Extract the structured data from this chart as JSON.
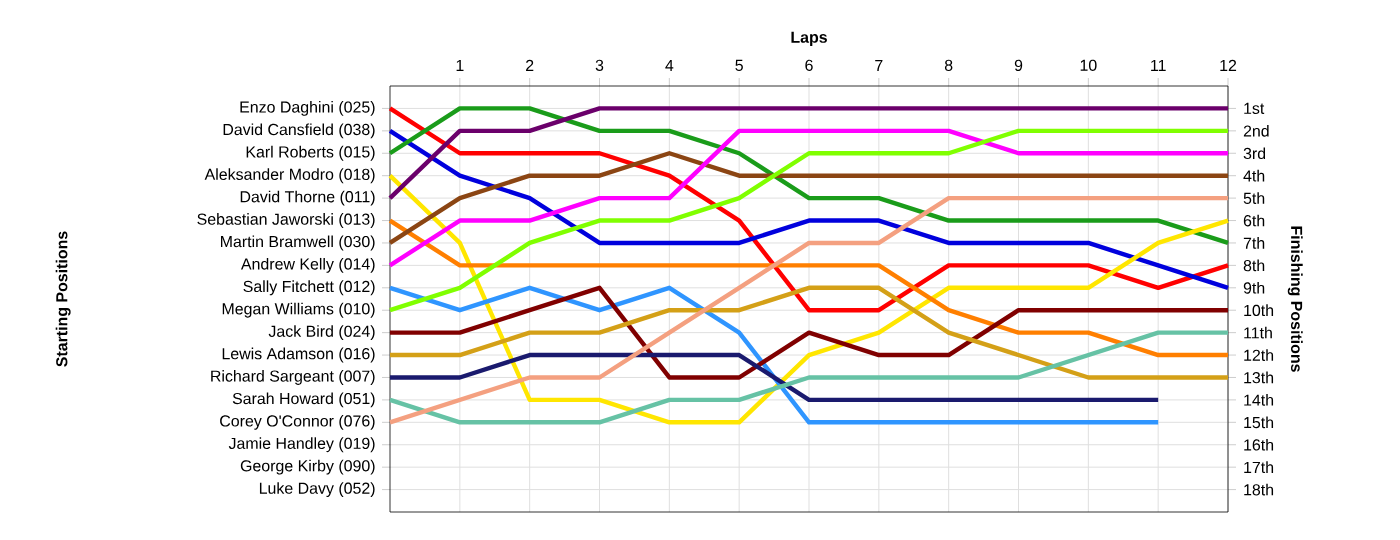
{
  "chart_data": {
    "type": "line",
    "xlabel": "Laps",
    "y2label": "Finishing Positions",
    "annotations": [
      "Starting Positions",
      "Jamie Handley (019)",
      "George Kirby (090)",
      "Luke Davy (052)"
    ],
    "xlim": [
      0,
      12
    ],
    "xticks": [
      1,
      2,
      3,
      4,
      5,
      6,
      7,
      8,
      9,
      10,
      11,
      12
    ],
    "x": [
      0,
      1,
      2,
      3,
      4,
      5,
      6,
      7,
      8,
      9,
      10,
      11,
      12
    ],
    "ylim": [
      19,
      0
    ],
    "yticks": [
      {
        "value": 1,
        "label": "1st"
      },
      {
        "value": 2,
        "label": "2nd"
      },
      {
        "value": 3,
        "label": "3rd"
      },
      {
        "value": 4,
        "label": "4th"
      },
      {
        "value": 5,
        "label": "5th"
      },
      {
        "value": 6,
        "label": "6th"
      },
      {
        "value": 7,
        "label": "7th"
      },
      {
        "value": 8,
        "label": "8th"
      },
      {
        "value": 9,
        "label": "9th"
      },
      {
        "value": 10,
        "label": "10th"
      },
      {
        "value": 11,
        "label": "11th"
      },
      {
        "value": 12,
        "label": "12th"
      },
      {
        "value": 13,
        "label": "13th"
      },
      {
        "value": 14,
        "label": "14th"
      },
      {
        "value": 15,
        "label": "15th"
      },
      {
        "value": 16,
        "label": "16th"
      },
      {
        "value": 17,
        "label": "17th"
      },
      {
        "value": 18,
        "label": "18th"
      }
    ],
    "grid": true,
    "series": [
      {
        "name": "Enzo Daghini (025)",
        "color": "#ff0000",
        "values": [
          1,
          3,
          3,
          3,
          4,
          6,
          10,
          10,
          8,
          8,
          8,
          9,
          8
        ]
      },
      {
        "name": "David Cansfield (038)",
        "color": "#0000dd",
        "values": [
          2,
          4,
          5,
          7,
          7,
          7,
          6,
          6,
          7,
          7,
          7,
          8,
          9
        ]
      },
      {
        "name": "Karl Roberts (015)",
        "color": "#1a9c1a",
        "values": [
          3,
          1,
          1,
          2,
          2,
          3,
          5,
          5,
          6,
          6,
          6,
          6,
          7
        ]
      },
      {
        "name": "Aleksander Modro (018)",
        "color": "#ffe600",
        "values": [
          4,
          7,
          14,
          14,
          15,
          15,
          12,
          11,
          9,
          9,
          9,
          7,
          6
        ]
      },
      {
        "name": "David Thorne (011)",
        "color": "#6b006b",
        "values": [
          5,
          2,
          2,
          1,
          1,
          1,
          1,
          1,
          1,
          1,
          1,
          1,
          1
        ]
      },
      {
        "name": "Sebastian Jaworski (013)",
        "color": "#ff7f00",
        "values": [
          6,
          8,
          8,
          8,
          8,
          8,
          8,
          8,
          10,
          11,
          11,
          12,
          12
        ]
      },
      {
        "name": "Martin Bramwell (030)",
        "color": "#8b4513",
        "values": [
          7,
          5,
          4,
          4,
          3,
          4,
          4,
          4,
          4,
          4,
          4,
          4,
          4
        ]
      },
      {
        "name": "Andrew Kelly (014)",
        "color": "#ff00ff",
        "values": [
          8,
          6,
          6,
          5,
          5,
          2,
          2,
          2,
          2,
          3,
          3,
          3,
          3
        ]
      },
      {
        "name": "Sally Fitchett (012)",
        "color": "#2f95ff",
        "values": [
          9,
          10,
          9,
          10,
          9,
          11,
          15,
          15,
          15,
          15,
          15,
          15,
          null
        ]
      },
      {
        "name": "Megan Williams (010)",
        "color": "#80ff00",
        "values": [
          10,
          9,
          7,
          6,
          6,
          5,
          3,
          3,
          3,
          2,
          2,
          2,
          2
        ]
      },
      {
        "name": "Jack Bird (024)",
        "color": "#800000",
        "values": [
          11,
          11,
          10,
          9,
          13,
          13,
          11,
          12,
          12,
          10,
          10,
          10,
          10
        ]
      },
      {
        "name": "Lewis Adamson (016)",
        "color": "#d4a017",
        "values": [
          12,
          12,
          11,
          11,
          10,
          10,
          9,
          9,
          11,
          12,
          13,
          13,
          13
        ]
      },
      {
        "name": "Richard Sargeant (007)",
        "color": "#1a1a6e",
        "values": [
          13,
          13,
          12,
          12,
          12,
          12,
          14,
          14,
          14,
          14,
          14,
          14,
          null
        ]
      },
      {
        "name": "Sarah Howard (051)",
        "color": "#66c2a5",
        "values": [
          14,
          15,
          15,
          15,
          14,
          14,
          13,
          13,
          13,
          13,
          12,
          11,
          11
        ]
      },
      {
        "name": "Corey O'Connor (076)",
        "color": "#f4a080",
        "values": [
          15,
          14,
          13,
          13,
          11,
          9,
          7,
          7,
          5,
          5,
          5,
          5,
          5
        ]
      }
    ]
  }
}
